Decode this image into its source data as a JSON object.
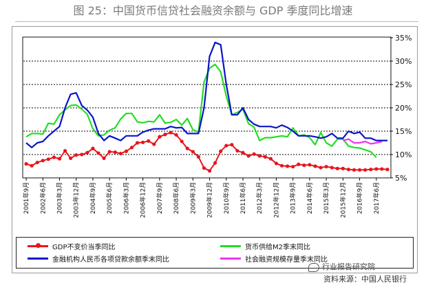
{
  "figure": {
    "title": "图 25：中国货币信贷社会融资余额与 GDP 季度同比增速",
    "source": "资料来源：中国人民银行",
    "watermark": "行业报告研究院"
  },
  "chart_data": {
    "type": "line",
    "title": "中国货币信贷社会融资余额与 GDP 季度同比增速",
    "ylim": [
      5,
      35
    ],
    "y_ticks": [
      "5%",
      "10%",
      "15%",
      "20%",
      "25%",
      "30%",
      "35%"
    ],
    "y_tick_values": [
      5,
      10,
      15,
      20,
      25,
      30,
      35
    ],
    "y_axis_position": "right",
    "grid": "horizontal dotted",
    "x_tick_labels": [
      "2001年9月",
      "2002年6月",
      "2003年3月",
      "2003年12月",
      "2004年9月",
      "2005年6月",
      "2006年3月",
      "2006年12月",
      "2007年9月",
      "2008年6月",
      "2009年3月",
      "2009年12月",
      "2010年9月",
      "2011年6月",
      "2012年3月",
      "2012年12月",
      "2013年9月",
      "2014年6月",
      "2015年3月",
      "2015年12月",
      "2016年9月",
      "2017年6月"
    ],
    "x_tick_quarters": [
      0,
      3,
      6,
      9,
      12,
      15,
      18,
      21,
      24,
      27,
      30,
      33,
      36,
      39,
      42,
      45,
      48,
      51,
      54,
      57,
      60,
      63
    ],
    "x_start": "2001Q3",
    "series": [
      {
        "name": "GDP不变价当季同比",
        "color": "#e8141b",
        "marker": "circle",
        "start_index": 0,
        "values": [
          8.0,
          7.6,
          8.3,
          8.7,
          9.0,
          9.4,
          9.1,
          10.8,
          9.2,
          9.9,
          10.0,
          10.4,
          11.3,
          10.3,
          9.2,
          10.6,
          10.5,
          10.2,
          10.7,
          11.5,
          12.5,
          12.6,
          12.9,
          12.2,
          13.8,
          14.3,
          14.7,
          14.2,
          12.8,
          11.3,
          10.6,
          9.5,
          7.1,
          6.5,
          8.2,
          10.7,
          11.9,
          12.1,
          10.8,
          10.4,
          9.7,
          10.1,
          9.7,
          9.5,
          9.1,
          8.1,
          7.6,
          7.5,
          7.4,
          7.9,
          7.7,
          7.8,
          7.5,
          7.2,
          7.4,
          7.2,
          7.0,
          7.0,
          6.8,
          6.7,
          6.7,
          6.7,
          6.8,
          6.9,
          6.9,
          6.8
        ]
      },
      {
        "name": "货币供给M2季末同比",
        "color": "#22dd22",
        "marker": "none",
        "start_index": 0,
        "values": [
          13.8,
          14.5,
          14.5,
          14.4,
          16.7,
          16.5,
          18.5,
          19.6,
          20.5,
          20.6,
          19.7,
          18.6,
          15.5,
          14.0,
          14.2,
          15.2,
          15.7,
          17.6,
          18.8,
          18.8,
          17.0,
          16.8,
          17.1,
          17.0,
          18.5,
          16.7,
          16.9,
          17.5,
          16.3,
          17.7,
          15.3,
          14.8,
          25.5,
          28.5,
          29.3,
          27.7,
          22.5,
          18.5,
          19.0,
          19.7,
          16.6,
          15.9,
          13.0,
          13.6,
          13.6,
          13.8,
          14.0,
          13.8,
          15.7,
          14.0,
          14.2,
          13.6,
          12.1,
          14.7,
          12.5,
          11.8,
          13.3,
          13.3,
          11.8,
          11.5,
          11.4,
          11.0,
          10.6,
          9.4
        ]
      },
      {
        "name": "金融机构人民币各项贷款余额季末同比",
        "color": "#0a14c8",
        "marker": "none",
        "start_index": 0,
        "values": [
          12.5,
          11.5,
          12.5,
          12.8,
          14.0,
          15.0,
          16.0,
          20.0,
          22.9,
          23.2,
          20.5,
          19.5,
          18.0,
          14.5,
          13.0,
          14.0,
          13.5,
          13.0,
          14.0,
          14.0,
          14.0,
          14.8,
          15.2,
          15.5,
          15.5,
          15.5,
          16.0,
          15.7,
          15.8,
          14.5,
          14.5,
          14.5,
          20.0,
          31.0,
          34.0,
          33.5,
          25.0,
          18.5,
          18.5,
          20.0,
          17.5,
          16.5,
          16.0,
          16.0,
          16.0,
          15.7,
          16.3,
          15.8,
          15.0,
          14.0,
          14.0,
          14.0,
          13.8,
          13.5,
          13.8,
          14.5,
          13.5,
          13.5,
          15.0,
          14.5,
          14.8,
          13.5,
          13.5,
          13.0,
          13.0,
          13.0
        ]
      },
      {
        "name": "社会融资规模存量季末同比",
        "color": "#ee33ee",
        "marker": "none",
        "start_index": 57,
        "values": [
          13.0,
          13.3,
          12.5,
          12.5,
          12.8,
          12.3,
          12.5,
          12.8
        ]
      }
    ],
    "legend": [
      {
        "label": "GDP不变价当季同比",
        "color": "#e8141b",
        "marker": "circle"
      },
      {
        "label": "货币供给M2季末同比",
        "color": "#22dd22",
        "marker": "none"
      },
      {
        "label": "金融机构人民币各项贷款余额季末同比",
        "color": "#0a14c8",
        "marker": "none"
      },
      {
        "label": "社会融资规模存量季末同比",
        "color": "#ee33ee",
        "marker": "none"
      }
    ],
    "legend_position": "bottom"
  }
}
